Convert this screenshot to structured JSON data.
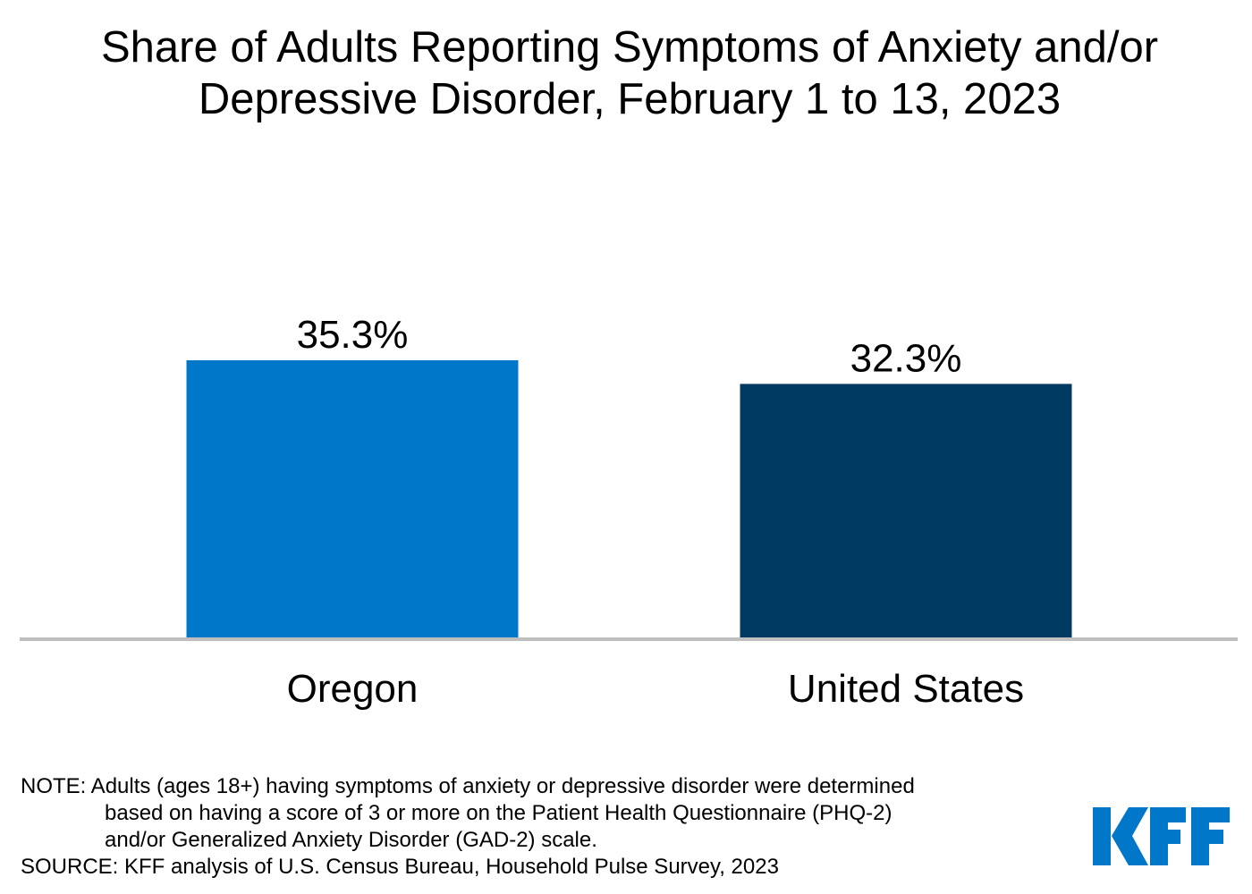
{
  "chart_data": {
    "type": "bar",
    "title": "Share of Adults Reporting Symptoms of Anxiety and/or Depressive Disorder, February 1 to 13, 2023",
    "title_lines": [
      "Share of Adults Reporting Symptoms of Anxiety and/or",
      "Depressive Disorder, February 1 to 13, 2023"
    ],
    "categories": [
      "Oregon",
      "United States"
    ],
    "values": [
      35.3,
      32.3
    ],
    "data_labels": [
      "35.3%",
      "32.3%"
    ],
    "colors": [
      "#0077C8",
      "#003A63"
    ],
    "xlabel": "",
    "ylabel": "",
    "ylim": [
      0,
      50
    ],
    "grid": false,
    "legend": "none",
    "axis_color": "#BFBFBF"
  },
  "footer": {
    "note_lines": [
      "NOTE: Adults (ages 18+) having symptoms of anxiety or depressive disorder were determined",
      "based on having a score of 3 or more on the Patient Health Questionnaire (PHQ-2)",
      "and/or Generalized Anxiety Disorder (GAD-2) scale."
    ],
    "source": "SOURCE: KFF analysis of U.S. Census Bureau, Household Pulse Survey, 2023"
  },
  "logo": {
    "text": "KFF",
    "color": "#0077C8"
  }
}
